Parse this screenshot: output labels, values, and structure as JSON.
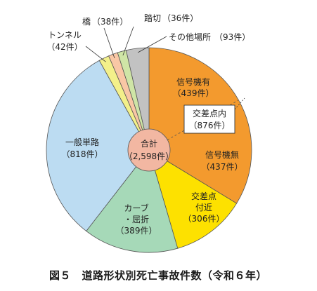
{
  "chart_data": {
    "type": "pie",
    "title": "図５　道路形状別死亡事故件数（令和６年）",
    "total": {
      "label": "合計",
      "value": "（2,598件）"
    },
    "slices": [
      {
        "name": "信号機有",
        "value": 439,
        "value_label": "（439件）",
        "color": "#f39a2e"
      },
      {
        "name": "信号機無",
        "value": 437,
        "value_label": "（437件）",
        "color": "#f39a2e"
      },
      {
        "name": "交差点付近",
        "name_lines": [
          "交差点",
          "付近"
        ],
        "value": 306,
        "value_label": "（306件）",
        "color": "#fde100"
      },
      {
        "name": "カーブ・屈折",
        "name_lines": [
          "カーブ",
          "・屈折"
        ],
        "value": 389,
        "value_label": "（389件）",
        "color": "#a6d9b8"
      },
      {
        "name": "一般単路",
        "value": 818,
        "value_label": "（818件）",
        "color": "#bcdcf2"
      },
      {
        "name": "トンネル",
        "value": 42,
        "value_label": "（42件）",
        "color": "#f3f08a"
      },
      {
        "name": "橋",
        "value": 38,
        "value_label": "（38件）",
        "color": "#f9c7a5"
      },
      {
        "name": "踏切",
        "value": 36,
        "value_label": "（36件）",
        "color": "#cfe5a6"
      },
      {
        "name": "その他場所",
        "value": 93,
        "value_label": "（93件）",
        "color": "#c2c2c2"
      }
    ],
    "group": {
      "name": "交差点内",
      "value_label": "（876件）"
    }
  }
}
